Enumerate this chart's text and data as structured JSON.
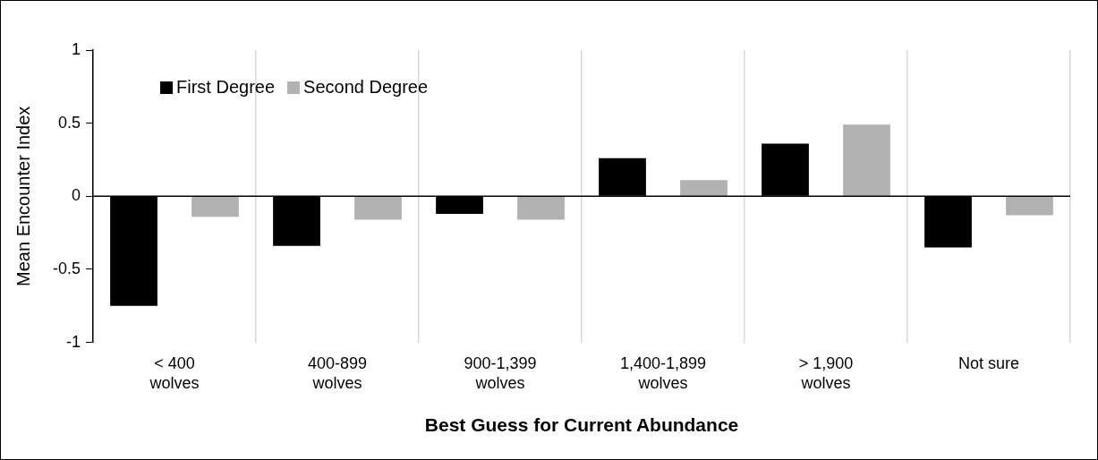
{
  "chart_data": {
    "type": "bar",
    "xlabel": "Best Guess for Current Abundance",
    "ylabel": "Mean Encounter Index",
    "categories": [
      "< 400\nwolves",
      "400-899\nwolves",
      "900-1,399\nwolves",
      "1,400-1,899\nwolves",
      "> 1,900\nwolves",
      "Not sure"
    ],
    "series": [
      {
        "name": "First Degree",
        "color": "#000000",
        "values": [
          -0.75,
          -0.34,
          -0.12,
          0.26,
          0.36,
          -0.35
        ]
      },
      {
        "name": "Second Degree",
        "color": "#b2b2b2",
        "values": [
          -0.14,
          -0.16,
          -0.16,
          0.11,
          0.49,
          -0.13
        ]
      }
    ],
    "ylim": [
      -1,
      1
    ],
    "yticks": [
      -1,
      -0.5,
      0,
      0.5,
      1
    ],
    "grid": "x",
    "legend": "top left"
  }
}
